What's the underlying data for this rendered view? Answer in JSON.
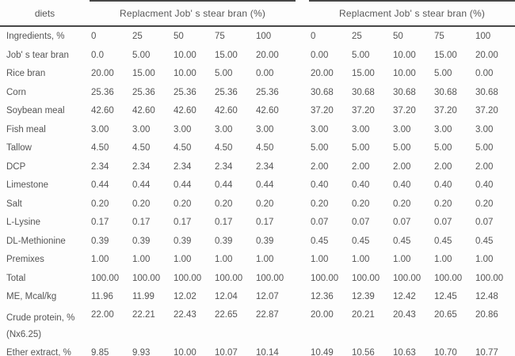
{
  "table": {
    "corner_label": "diets",
    "group_headers": [
      "Replacment Job' s stear bran  (%)",
      "Replacment Job' s stear bran  (%)"
    ],
    "subheader": {
      "label": "Ingredients, %",
      "cols": [
        "0",
        "25",
        "50",
        "75",
        "100",
        "0",
        "25",
        "50",
        "75",
        "100"
      ]
    },
    "rows": [
      {
        "label": "Job' s tear bran",
        "values": [
          "0.0",
          "5.00",
          "10.00",
          "15.00",
          "20.00",
          "0.00",
          "5.00",
          "10.00",
          "15.00",
          "20.00"
        ]
      },
      {
        "label": "Rice bran",
        "values": [
          "20.00",
          "15.00",
          "10.00",
          "5.00",
          "0.00",
          "20.00",
          "15.00",
          "10.00",
          "5.00",
          "0.00"
        ]
      },
      {
        "label": "Corn",
        "values": [
          "25.36",
          "25.36",
          "25.36",
          "25.36",
          "25.36",
          "30.68",
          "30.68",
          "30.68",
          "30.68",
          "30.68"
        ]
      },
      {
        "label": "Soybean meal",
        "values": [
          "42.60",
          "42.60",
          "42.60",
          "42.60",
          "42.60",
          "37.20",
          "37.20",
          "37.20",
          "37.20",
          "37.20"
        ]
      },
      {
        "label": "Fish meal",
        "values": [
          "3.00",
          "3.00",
          "3.00",
          "3.00",
          "3.00",
          "3.00",
          "3.00",
          "3.00",
          "3.00",
          "3.00"
        ]
      },
      {
        "label": "Tallow",
        "values": [
          "4.50",
          "4.50",
          "4.50",
          "4.50",
          "4.50",
          "5.00",
          "5.00",
          "5.00",
          "5.00",
          "5.00"
        ]
      },
      {
        "label": "DCP",
        "values": [
          "2.34",
          "2.34",
          "2.34",
          "2.34",
          "2.34",
          "2.00",
          "2.00",
          "2.00",
          "2.00",
          "2.00"
        ]
      },
      {
        "label": "Limestone",
        "values": [
          "0.44",
          "0.44",
          "0.44",
          "0.44",
          "0.44",
          "0.40",
          "0.40",
          "0.40",
          "0.40",
          "0.40"
        ]
      },
      {
        "label": "Salt",
        "values": [
          "0.20",
          "0.20",
          "0.20",
          "0.20",
          "0.20",
          "0.20",
          "0.20",
          "0.20",
          "0.20",
          "0.20"
        ]
      },
      {
        "label": "L-Lysine",
        "values": [
          "0.17",
          "0.17",
          "0.17",
          "0.17",
          "0.17",
          "0.07",
          "0.07",
          "0.07",
          "0.07",
          "0.07"
        ]
      },
      {
        "label": "DL-Methionine",
        "values": [
          "0.39",
          "0.39",
          "0.39",
          "0.39",
          "0.39",
          "0.45",
          "0.45",
          "0.45",
          "0.45",
          "0.45"
        ]
      },
      {
        "label": "Premixes",
        "values": [
          "1.00",
          "1.00",
          "1.00",
          "1.00",
          "1.00",
          "1.00",
          "1.00",
          "1.00",
          "1.00",
          "1.00"
        ]
      },
      {
        "label": "Total",
        "values": [
          "100.00",
          "100.00",
          "100.00",
          "100.00",
          "100.00",
          "100.00",
          "100.00",
          "100.00",
          "100.00",
          "100.00"
        ]
      },
      {
        "label": "ME, Mcal/kg",
        "values": [
          "11.96",
          "11.99",
          "12.02",
          "12.04",
          "12.07",
          "12.36",
          "12.39",
          "12.42",
          "12.45",
          "12.48"
        ]
      },
      {
        "label": "Crude protein, %",
        "label2": "(Nx6.25)",
        "values": [
          "22.00",
          "22.21",
          "22.43",
          "22.65",
          "22.87",
          "20.00",
          "20.21",
          "20.43",
          "20.65",
          "20.86"
        ]
      },
      {
        "label": "Ether extract, %",
        "values": [
          "9.85",
          "9.93",
          "10.00",
          "10.07",
          "10.14",
          "10.49",
          "10.56",
          "10.63",
          "10.70",
          "10.77"
        ]
      }
    ],
    "colors": {
      "text": "#555555",
      "rule": "#474747",
      "background": "#fdfdfd"
    }
  }
}
